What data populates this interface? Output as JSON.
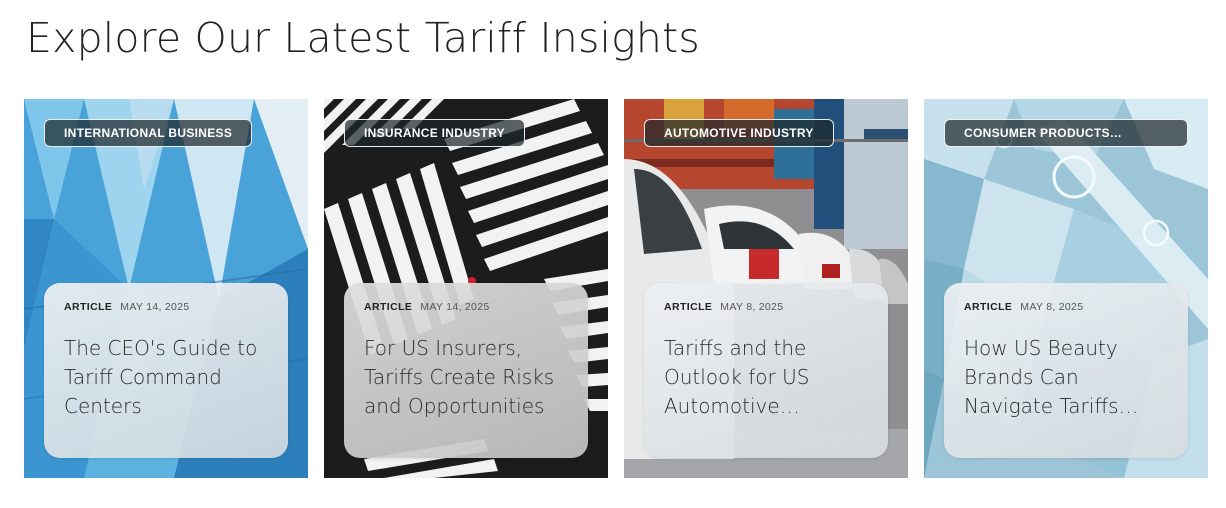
{
  "page": {
    "title": "Explore Our Latest Tariff Insights"
  },
  "cards": [
    {
      "tag": "INTERNATIONAL BUSINESS",
      "type": "ARTICLE",
      "date": "MAY 14, 2025",
      "title": "The CEO's Guide to Tariff Command Centers"
    },
    {
      "tag": "INSURANCE INDUSTRY",
      "type": "ARTICLE",
      "date": "MAY 14, 2025",
      "title": "For US Insurers, Tariffs Create Risks and Opportunities"
    },
    {
      "tag": "AUTOMOTIVE INDUSTRY",
      "type": "ARTICLE",
      "date": "MAY 8, 2025",
      "title": "Tariffs and the Outlook for US Automotive…"
    },
    {
      "tag": "CONSUMER PRODUCTS…",
      "type": "ARTICLE",
      "date": "MAY 8, 2025",
      "title": "How US Beauty Brands Can Navigate Tariffs…"
    }
  ]
}
